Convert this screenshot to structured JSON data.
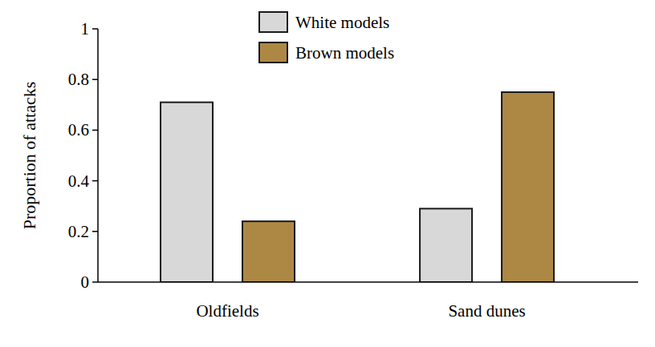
{
  "chart_data": {
    "type": "bar",
    "y_label": "Proportion of attacks",
    "categories": [
      "Oldfields",
      "Sand dunes"
    ],
    "series": [
      {
        "name": "White models",
        "color": "#d8d8d8",
        "values": [
          0.71,
          0.29
        ]
      },
      {
        "name": "Brown models",
        "color": "#ad8845",
        "values": [
          0.24,
          0.75
        ]
      }
    ],
    "ylim": [
      0,
      1
    ],
    "yticks": [
      0,
      0.2,
      0.4,
      0.6,
      0.8,
      1
    ],
    "grid": false,
    "legend": "top"
  }
}
